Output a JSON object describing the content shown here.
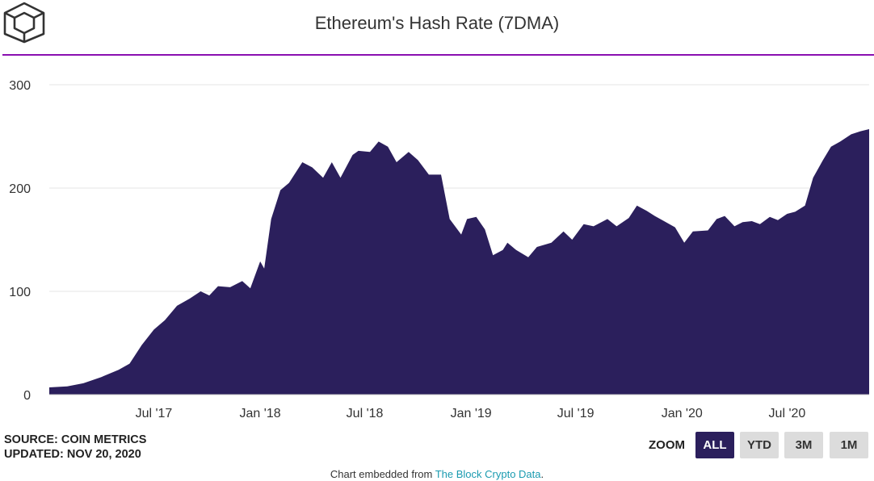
{
  "header": {
    "title": "Ethereum's Hash Rate (7DMA)"
  },
  "footer": {
    "source": "SOURCE: COIN METRICS",
    "updated": "UPDATED: NOV 20, 2020",
    "embedded_prefix": "Chart embedded from ",
    "embedded_link": "The Block Crypto Data",
    "embedded_suffix": "."
  },
  "zoom": {
    "label": "ZOOM",
    "buttons": [
      "ALL",
      "YTD",
      "3M",
      "1M"
    ],
    "active": "ALL"
  },
  "colors": {
    "area_fill": "#2b1f5c",
    "accent_line": "#8a0fb0",
    "link": "#1a9bb0",
    "grid": "#e6e6e6"
  },
  "chart_data": {
    "type": "area",
    "title": "Ethereum's Hash Rate (7DMA)",
    "xlabel": "",
    "ylabel": "",
    "ylim": [
      0,
      300
    ],
    "yticks": [
      0,
      100,
      200,
      300
    ],
    "xticks": [
      {
        "date": "2017-07-01",
        "label": "Jul '17"
      },
      {
        "date": "2018-01-01",
        "label": "Jan '18"
      },
      {
        "date": "2018-07-01",
        "label": "Jul '18"
      },
      {
        "date": "2019-01-01",
        "label": "Jan '19"
      },
      {
        "date": "2019-07-01",
        "label": "Jul '19"
      },
      {
        "date": "2020-01-01",
        "label": "Jan '20"
      },
      {
        "date": "2020-07-01",
        "label": "Jul '20"
      }
    ],
    "grid": true,
    "legend": "none",
    "series": [
      {
        "values": [
          [
            "2017-01-01",
            7
          ],
          [
            "2017-02-01",
            8
          ],
          [
            "2017-03-01",
            11
          ],
          [
            "2017-04-01",
            17
          ],
          [
            "2017-05-01",
            24
          ],
          [
            "2017-05-20",
            30
          ],
          [
            "2017-06-10",
            48
          ],
          [
            "2017-07-01",
            63
          ],
          [
            "2017-07-20",
            72
          ],
          [
            "2017-08-10",
            86
          ],
          [
            "2017-09-01",
            93
          ],
          [
            "2017-09-20",
            100
          ],
          [
            "2017-10-05",
            96
          ],
          [
            "2017-10-20",
            105
          ],
          [
            "2017-11-10",
            104
          ],
          [
            "2017-12-01",
            110
          ],
          [
            "2017-12-15",
            103
          ],
          [
            "2018-01-01",
            129
          ],
          [
            "2018-01-08",
            122
          ],
          [
            "2018-01-20",
            170
          ],
          [
            "2018-02-05",
            198
          ],
          [
            "2018-02-20",
            205
          ],
          [
            "2018-03-15",
            225
          ],
          [
            "2018-04-01",
            220
          ],
          [
            "2018-04-20",
            210
          ],
          [
            "2018-05-05",
            225
          ],
          [
            "2018-05-20",
            210
          ],
          [
            "2018-06-10",
            232
          ],
          [
            "2018-06-20",
            236
          ],
          [
            "2018-07-10",
            235
          ],
          [
            "2018-07-25",
            245
          ],
          [
            "2018-08-10",
            240
          ],
          [
            "2018-08-25",
            225
          ],
          [
            "2018-09-15",
            235
          ],
          [
            "2018-10-01",
            227
          ],
          [
            "2018-10-20",
            213
          ],
          [
            "2018-11-10",
            213
          ],
          [
            "2018-11-25",
            170
          ],
          [
            "2018-12-15",
            155
          ],
          [
            "2018-12-25",
            170
          ],
          [
            "2019-01-10",
            172
          ],
          [
            "2019-01-25",
            160
          ],
          [
            "2019-02-08",
            135
          ],
          [
            "2019-02-25",
            140
          ],
          [
            "2019-03-05",
            147
          ],
          [
            "2019-03-20",
            140
          ],
          [
            "2019-04-10",
            133
          ],
          [
            "2019-04-25",
            143
          ],
          [
            "2019-05-20",
            147
          ],
          [
            "2019-06-10",
            158
          ],
          [
            "2019-06-25",
            150
          ],
          [
            "2019-07-15",
            165
          ],
          [
            "2019-08-01",
            163
          ],
          [
            "2019-08-25",
            170
          ],
          [
            "2019-09-10",
            163
          ],
          [
            "2019-10-01",
            171
          ],
          [
            "2019-10-15",
            183
          ],
          [
            "2019-11-01",
            178
          ],
          [
            "2019-11-15",
            173
          ],
          [
            "2019-12-01",
            168
          ],
          [
            "2019-12-20",
            162
          ],
          [
            "2020-01-05",
            147
          ],
          [
            "2020-01-20",
            158
          ],
          [
            "2020-02-15",
            159
          ],
          [
            "2020-03-01",
            170
          ],
          [
            "2020-03-15",
            173
          ],
          [
            "2020-04-01",
            163
          ],
          [
            "2020-04-15",
            167
          ],
          [
            "2020-05-01",
            168
          ],
          [
            "2020-05-15",
            165
          ],
          [
            "2020-06-01",
            172
          ],
          [
            "2020-06-15",
            169
          ],
          [
            "2020-07-01",
            175
          ],
          [
            "2020-07-15",
            177
          ],
          [
            "2020-08-01",
            183
          ],
          [
            "2020-08-15",
            210
          ],
          [
            "2020-09-01",
            227
          ],
          [
            "2020-09-15",
            240
          ],
          [
            "2020-10-01",
            245
          ],
          [
            "2020-10-20",
            252
          ],
          [
            "2020-11-05",
            255
          ],
          [
            "2020-11-20",
            257
          ]
        ]
      }
    ]
  }
}
